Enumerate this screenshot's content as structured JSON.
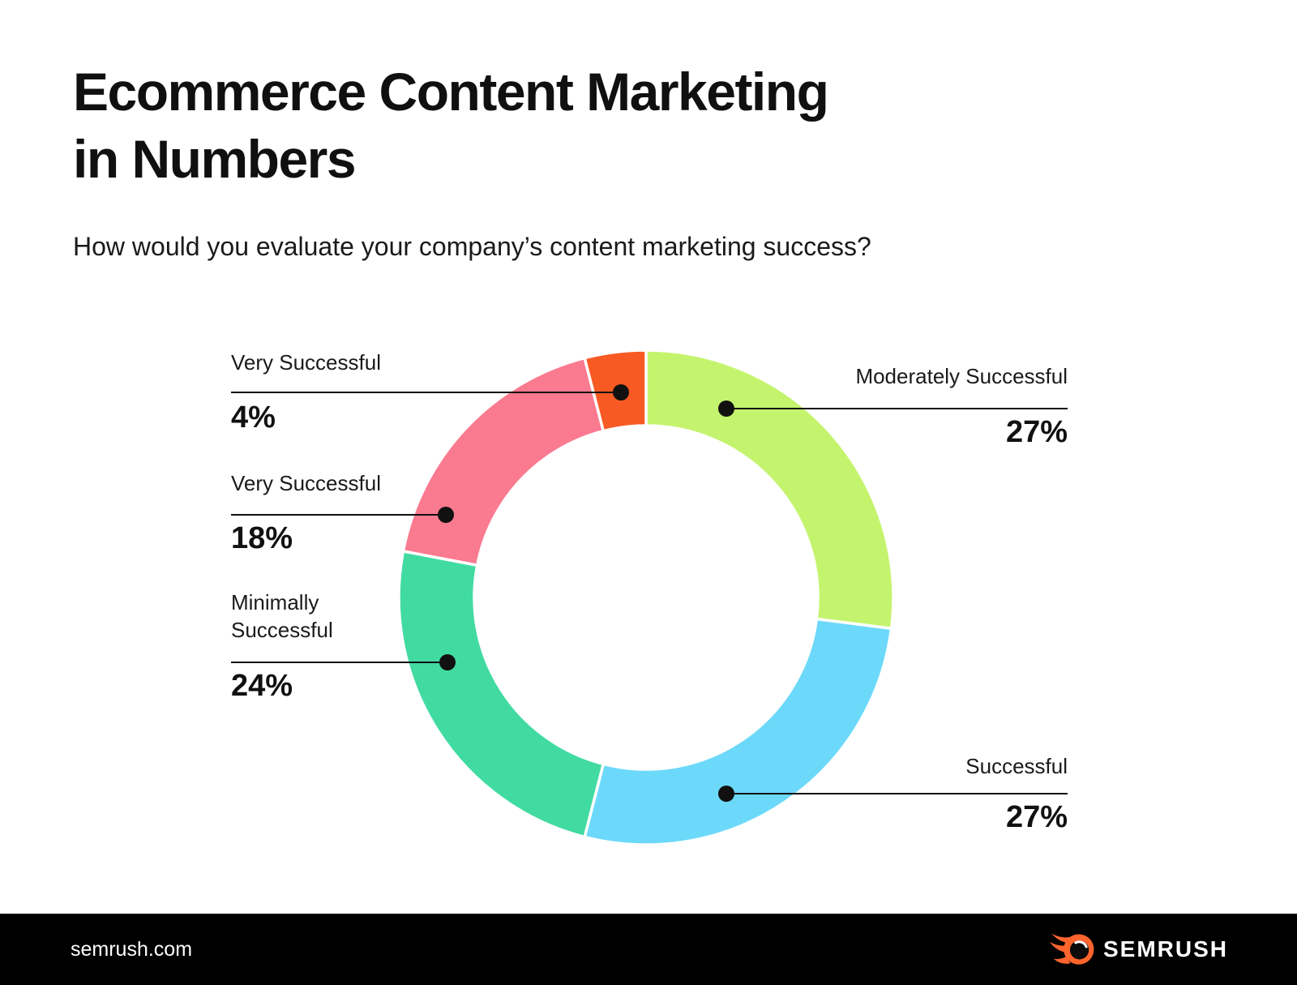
{
  "page": {
    "background_color": "#ffffff",
    "footer_background_color": "#000000",
    "text_color": "#111111",
    "callout_line_color": "#111111",
    "brand_orange": "#ff642d"
  },
  "header": {
    "title": "Ecommerce Content Marketing\nin Numbers",
    "subtitle": "How would you evaluate your company’s content marketing success?"
  },
  "chart_data": {
    "type": "pie",
    "variant": "donut",
    "title": "How would you evaluate your company’s content marketing success?",
    "start_angle_deg": 0,
    "direction": "clockwise",
    "hole_ratio": 0.7,
    "gap_color": "#ffffff",
    "segments": [
      {
        "label": "Moderately Successful",
        "value": 27,
        "value_label": "27%",
        "color": "#c4f46d"
      },
      {
        "label": "Successful",
        "value": 27,
        "value_label": "27%",
        "color": "#6cd9fa"
      },
      {
        "label": "Minimally Successful",
        "value": 24,
        "value_label": "24%",
        "color": "#41dba2"
      },
      {
        "label": "Very Successful",
        "value": 18,
        "value_label": "18%",
        "color": "#fa7a90"
      },
      {
        "label": "Very Successful",
        "value": 4,
        "value_label": "4%",
        "color": "#f85a23"
      }
    ]
  },
  "footer": {
    "site": "semrush.com",
    "brand": "SEMRUSH",
    "logo_icon": "semrush-flame-icon"
  }
}
